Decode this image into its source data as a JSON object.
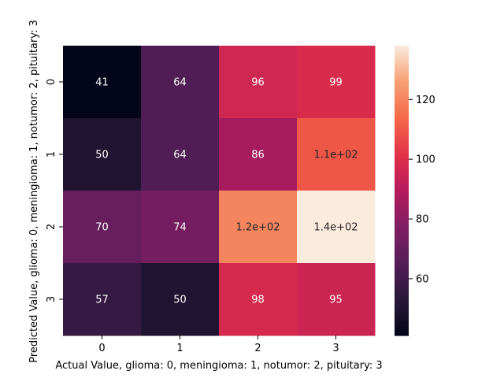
{
  "chart_data": {
    "type": "heatmap",
    "title": "",
    "xlabel": "Actual Value, glioma: 0, meningioma: 1, notumor: 2, pituitary: 3",
    "ylabel": "Predicted Value, glioma: 0, meningioma: 1, notumor: 2, pituitary: 3",
    "x_categories": [
      "0",
      "1",
      "2",
      "3"
    ],
    "y_categories": [
      "0",
      "1",
      "2",
      "3"
    ],
    "values": [
      [
        41,
        64,
        96,
        99
      ],
      [
        50,
        64,
        86,
        110
      ],
      [
        70,
        74,
        120,
        140
      ],
      [
        57,
        50,
        98,
        95
      ]
    ],
    "annotations": [
      [
        "41",
        "64",
        "96",
        "99"
      ],
      [
        "50",
        "64",
        "86",
        "1.1e+02"
      ],
      [
        "70",
        "74",
        "1.2e+02",
        "1.4e+02"
      ],
      [
        "57",
        "50",
        "98",
        "95"
      ]
    ],
    "colorbar": {
      "colormap": "rocket",
      "vmin": 41,
      "vmax": 138,
      "ticks": [
        60,
        80,
        100,
        120
      ]
    }
  }
}
